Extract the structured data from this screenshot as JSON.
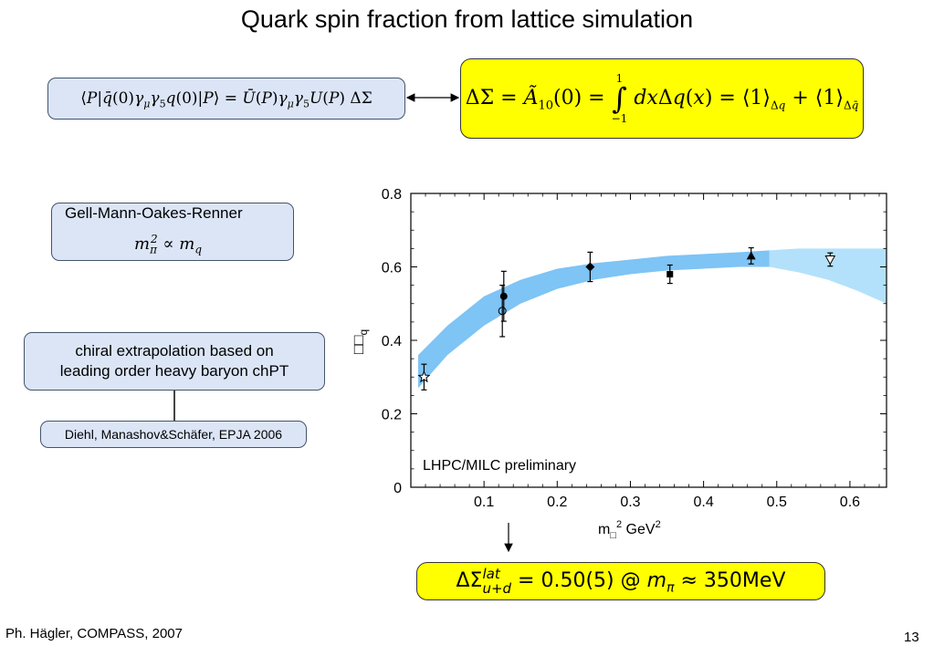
{
  "slide": {
    "title": "Quark spin fraction from lattice simulation",
    "footer_left": "Ph. Hägler, COMPASS, 2007",
    "page_number": "13"
  },
  "formulas": {
    "matrix_element": "⟨P|q̄(0)γμγ5q(0)|P⟩ = Ū(P)γμγ5U(P) ΔΣ",
    "delta_sigma_definition": "ΔΣ = Ã10(0) = ∫₋₁¹ dxΔq(x) = ⟨1⟩Δq + ⟨1⟩Δq̄",
    "gmor": "mπ² ∝ mq",
    "result": "ΔΣ lat u+d = 0.50(5) @ mπ ≈ 350MeV"
  },
  "boxes": {
    "gmor_label": "Gell-Mann-Oakes-Renner",
    "chiral_line1": "chiral extrapolation based on",
    "chiral_line2": "leading order heavy baryon chPT",
    "reference": "Diehl, Manashov&Schäfer, EPJA 2006"
  },
  "chart_data": {
    "type": "scatter",
    "xlabel": "mπ² GeV²",
    "ylabel": "ΔΣq",
    "xlim": [
      0,
      0.65
    ],
    "ylim": [
      0,
      0.8
    ],
    "x_ticks": [
      0.1,
      0.2,
      0.3,
      0.4,
      0.5,
      0.6
    ],
    "y_ticks": [
      0,
      0.2,
      0.4,
      0.6,
      0.8
    ],
    "annotation": "LHPC/MILC preliminary",
    "band_colors": {
      "fit": "#7ec4f5",
      "extrapolated": "#b3e1fb"
    },
    "band": {
      "x": [
        0.01,
        0.05,
        0.1,
        0.15,
        0.2,
        0.25,
        0.3,
        0.35,
        0.4,
        0.45,
        0.49
      ],
      "lower": [
        0.27,
        0.36,
        0.44,
        0.5,
        0.54,
        0.565,
        0.58,
        0.59,
        0.595,
        0.6,
        0.6
      ],
      "upper": [
        0.36,
        0.44,
        0.52,
        0.565,
        0.595,
        0.61,
        0.62,
        0.63,
        0.635,
        0.64,
        0.645
      ]
    },
    "band_extrapolated": {
      "x": [
        0.49,
        0.53,
        0.57,
        0.61,
        0.65
      ],
      "lower": [
        0.6,
        0.585,
        0.565,
        0.535,
        0.5
      ],
      "upper": [
        0.645,
        0.65,
        0.65,
        0.65,
        0.65
      ]
    },
    "points": [
      {
        "x": 0.018,
        "y": 0.3,
        "err": 0.035,
        "marker": "star"
      },
      {
        "x": 0.127,
        "y": 0.52,
        "err": 0.068,
        "marker": "filled-circle"
      },
      {
        "x": 0.125,
        "y": 0.48,
        "err": 0.07,
        "marker": "open-circle"
      },
      {
        "x": 0.245,
        "y": 0.6,
        "err": 0.04,
        "marker": "filled-diamond"
      },
      {
        "x": 0.354,
        "y": 0.58,
        "err": 0.025,
        "marker": "filled-square"
      },
      {
        "x": 0.465,
        "y": 0.63,
        "err": 0.022,
        "marker": "filled-triangle"
      },
      {
        "x": 0.573,
        "y": 0.62,
        "err": 0.018,
        "marker": "open-triangle-down"
      }
    ]
  }
}
